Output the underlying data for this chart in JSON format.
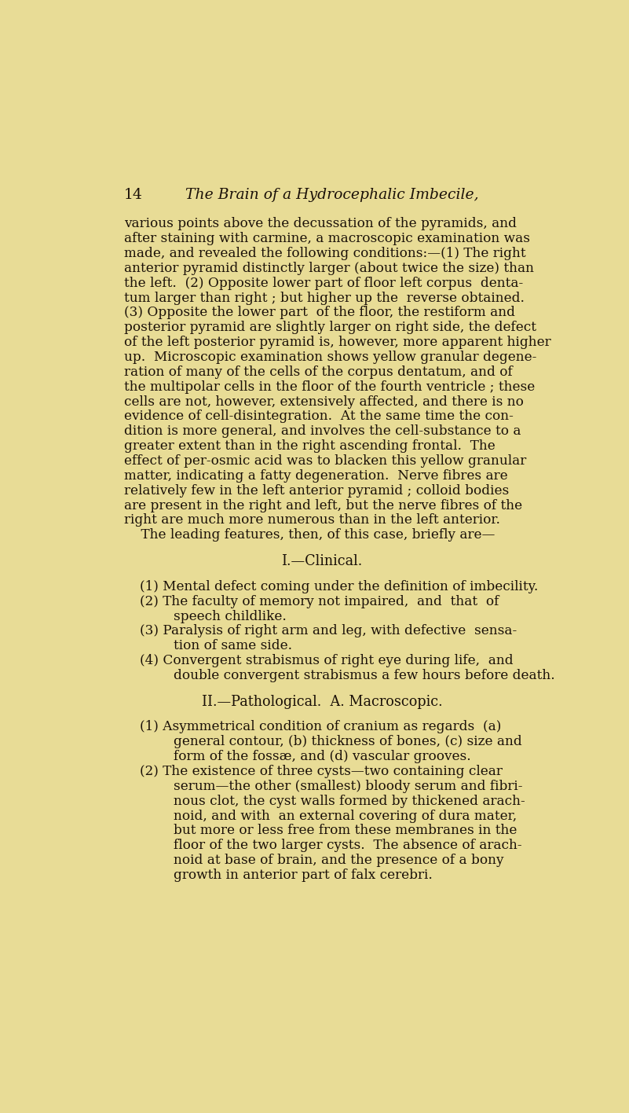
{
  "bg_color": "#e8dc96",
  "text_color": "#1a1008",
  "page_width": 8.01,
  "page_height": 14.16,
  "dpi": 100,
  "header_number": "14",
  "header_title": "The Brain of a Hydrocephalic Imbecile,",
  "body_lines": [
    {
      "text": "various points above the decussation of the pyramids, and",
      "type": "body"
    },
    {
      "text": "after staining with carmine, a macroscopic examination was",
      "type": "body"
    },
    {
      "text": "made, and revealed the following conditions:—(1) The right",
      "type": "body"
    },
    {
      "text": "anterior pyramid distinctly larger (about twice the size) than",
      "type": "body"
    },
    {
      "text": "the left.  (2) Opposite lower part of floor left corpus  denta-",
      "type": "body"
    },
    {
      "text": "tum larger than right ; but higher up the  reverse obtained.",
      "type": "body"
    },
    {
      "text": "(3) Opposite the lower part  of the floor, the restiform and",
      "type": "body"
    },
    {
      "text": "posterior pyramid are slightly larger on right side, the defect",
      "type": "body"
    },
    {
      "text": "of the left posterior pyramid is, however, more apparent higher",
      "type": "body"
    },
    {
      "text": "up.  Microscopic examination shows yellow granular degene-",
      "type": "body"
    },
    {
      "text": "ration of many of the cells of the corpus dentatum, and of",
      "type": "body"
    },
    {
      "text": "the multipolar cells in the floor of the fourth ventricle ; these",
      "type": "body"
    },
    {
      "text": "cells are not, however, extensively affected, and there is no",
      "type": "body"
    },
    {
      "text": "evidence of cell-disintegration.  At the same time the con-",
      "type": "body"
    },
    {
      "text": "dition is more general, and involves the cell-substance to a",
      "type": "body"
    },
    {
      "text": "greater extent than in the right ascending frontal.  The",
      "type": "body"
    },
    {
      "text": "effect of per-osmic acid was to blacken this yellow granular",
      "type": "body"
    },
    {
      "text": "matter, indicating a fatty degeneration.  Nerve fibres are",
      "type": "body"
    },
    {
      "text": "relatively few in the left anterior pyramid ; colloid bodies",
      "type": "body"
    },
    {
      "text": "are present in the right and left, but the nerve fibres of the",
      "type": "body"
    },
    {
      "text": "right are much more numerous than in the left anterior.",
      "type": "body_last"
    },
    {
      "text": "    The leading features, then, of this case, briefly are—",
      "type": "body_last"
    },
    {
      "text": "",
      "type": "gap"
    },
    {
      "text": "I.—Clinical.",
      "type": "heading"
    },
    {
      "text": "",
      "type": "gap"
    },
    {
      "text": "(1) Mental defect coming under the definition of imbecility.",
      "type": "list"
    },
    {
      "text": "(2) The faculty of memory not impaired,  and  that  of",
      "type": "list"
    },
    {
      "text": "        speech childlike.",
      "type": "list_cont"
    },
    {
      "text": "(3) Paralysis of right arm and leg, with defective  sensa-",
      "type": "list"
    },
    {
      "text": "        tion of same side.",
      "type": "list_cont"
    },
    {
      "text": "(4) Convergent strabismus of right eye during life,  and",
      "type": "list"
    },
    {
      "text": "        double convergent strabismus a few hours before death.",
      "type": "list_cont"
    },
    {
      "text": "",
      "type": "gap"
    },
    {
      "text": "II.—Pathological.  A. Macroscopic.",
      "type": "heading"
    },
    {
      "text": "",
      "type": "gap"
    },
    {
      "text": "(1) Asymmetrical condition of cranium as regards  (a)",
      "type": "list"
    },
    {
      "text": "        general contour, (b) thickness of bones, (c) size and",
      "type": "list_cont"
    },
    {
      "text": "        form of the fossæ, and (d) vascular grooves.",
      "type": "list_cont"
    },
    {
      "text": "(2) The existence of three cysts—two containing clear",
      "type": "list"
    },
    {
      "text": "        serum—the other (smallest) bloody serum and fibri-",
      "type": "list_cont"
    },
    {
      "text": "        nous clot, the cyst walls formed by thickened arach-",
      "type": "list_cont"
    },
    {
      "text": "        noid, and with  an external covering of dura mater,",
      "type": "list_cont"
    },
    {
      "text": "        but more or less free from these membranes in the",
      "type": "list_cont"
    },
    {
      "text": "        floor of the two larger cysts.  The absence of arach-",
      "type": "list_cont"
    },
    {
      "text": "        noid at base of brain, and the presence of a bony",
      "type": "list_cont"
    },
    {
      "text": "        growth in anterior part of falx cerebri.",
      "type": "list_cont"
    }
  ]
}
